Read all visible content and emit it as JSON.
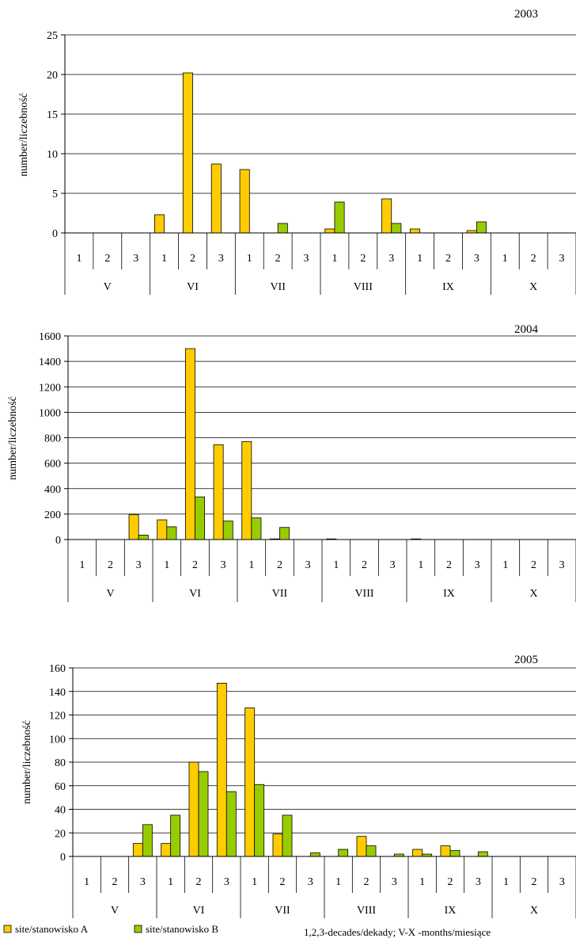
{
  "chart_data": [
    {
      "type": "bar",
      "title": "2003",
      "ylabel": "number/liczebność",
      "ylim": [
        0,
        25
      ],
      "yticks": [
        0,
        5,
        10,
        15,
        20,
        25
      ],
      "months": [
        "V",
        "VI",
        "VII",
        "VIII",
        "IX",
        "X"
      ],
      "decades": [
        "1",
        "2",
        "3"
      ],
      "series": [
        {
          "name": "site/stanowisko A",
          "color": "#FFCC00",
          "values": [
            0,
            0,
            0,
            2.3,
            20.2,
            8.7,
            8.0,
            0,
            0,
            0.5,
            0,
            4.3,
            0.5,
            0,
            0.3,
            0,
            0,
            0
          ]
        },
        {
          "name": "site/stanowisko B",
          "color": "#99CC00",
          "values": [
            0,
            0,
            0,
            0,
            0,
            0,
            0,
            1.2,
            0,
            3.9,
            0,
            1.2,
            0,
            0,
            1.4,
            0,
            0,
            0
          ]
        }
      ]
    },
    {
      "type": "bar",
      "title": "2004",
      "ylabel": "number/liczebność",
      "ylim": [
        0,
        1600
      ],
      "yticks": [
        0,
        200,
        400,
        600,
        800,
        1000,
        1200,
        1400,
        1600
      ],
      "months": [
        "V",
        "VI",
        "VII",
        "VIII",
        "IX",
        "X"
      ],
      "decades": [
        "1",
        "2",
        "3"
      ],
      "series": [
        {
          "name": "site/stanowisko A",
          "color": "#FFCC00",
          "values": [
            0,
            0,
            195,
            155,
            1500,
            745,
            770,
            5,
            0,
            5,
            0,
            0,
            5,
            0,
            0,
            0,
            0,
            0
          ]
        },
        {
          "name": "site/stanowisko B",
          "color": "#99CC00",
          "values": [
            0,
            0,
            35,
            100,
            335,
            145,
            170,
            95,
            0,
            0,
            0,
            0,
            0,
            0,
            0,
            0,
            0,
            0
          ]
        }
      ]
    },
    {
      "type": "bar",
      "title": "2005",
      "ylabel": "number/liczebność",
      "ylim": [
        0,
        160
      ],
      "yticks": [
        0,
        20,
        40,
        60,
        80,
        100,
        120,
        140,
        160
      ],
      "months": [
        "V",
        "VI",
        "VII",
        "VIII",
        "IX",
        "X"
      ],
      "decades": [
        "1",
        "2",
        "3"
      ],
      "series": [
        {
          "name": "site/stanowisko A",
          "color": "#FFCC00",
          "values": [
            0,
            0,
            11,
            11,
            80,
            147,
            126,
            19,
            0,
            0,
            17,
            0,
            6,
            9,
            0,
            0,
            0,
            0
          ]
        },
        {
          "name": "site/stanowisko B",
          "color": "#99CC00",
          "values": [
            0,
            0,
            27,
            35,
            72,
            55,
            61,
            35,
            3,
            6,
            9,
            2,
            2,
            5,
            4,
            0,
            0,
            0
          ]
        }
      ]
    }
  ],
  "legend": {
    "series_a": "site/stanowisko A",
    "series_b": "site/stanowisko B",
    "note": "1,2,3-decades/dekady; V-X -months/miesiące"
  }
}
